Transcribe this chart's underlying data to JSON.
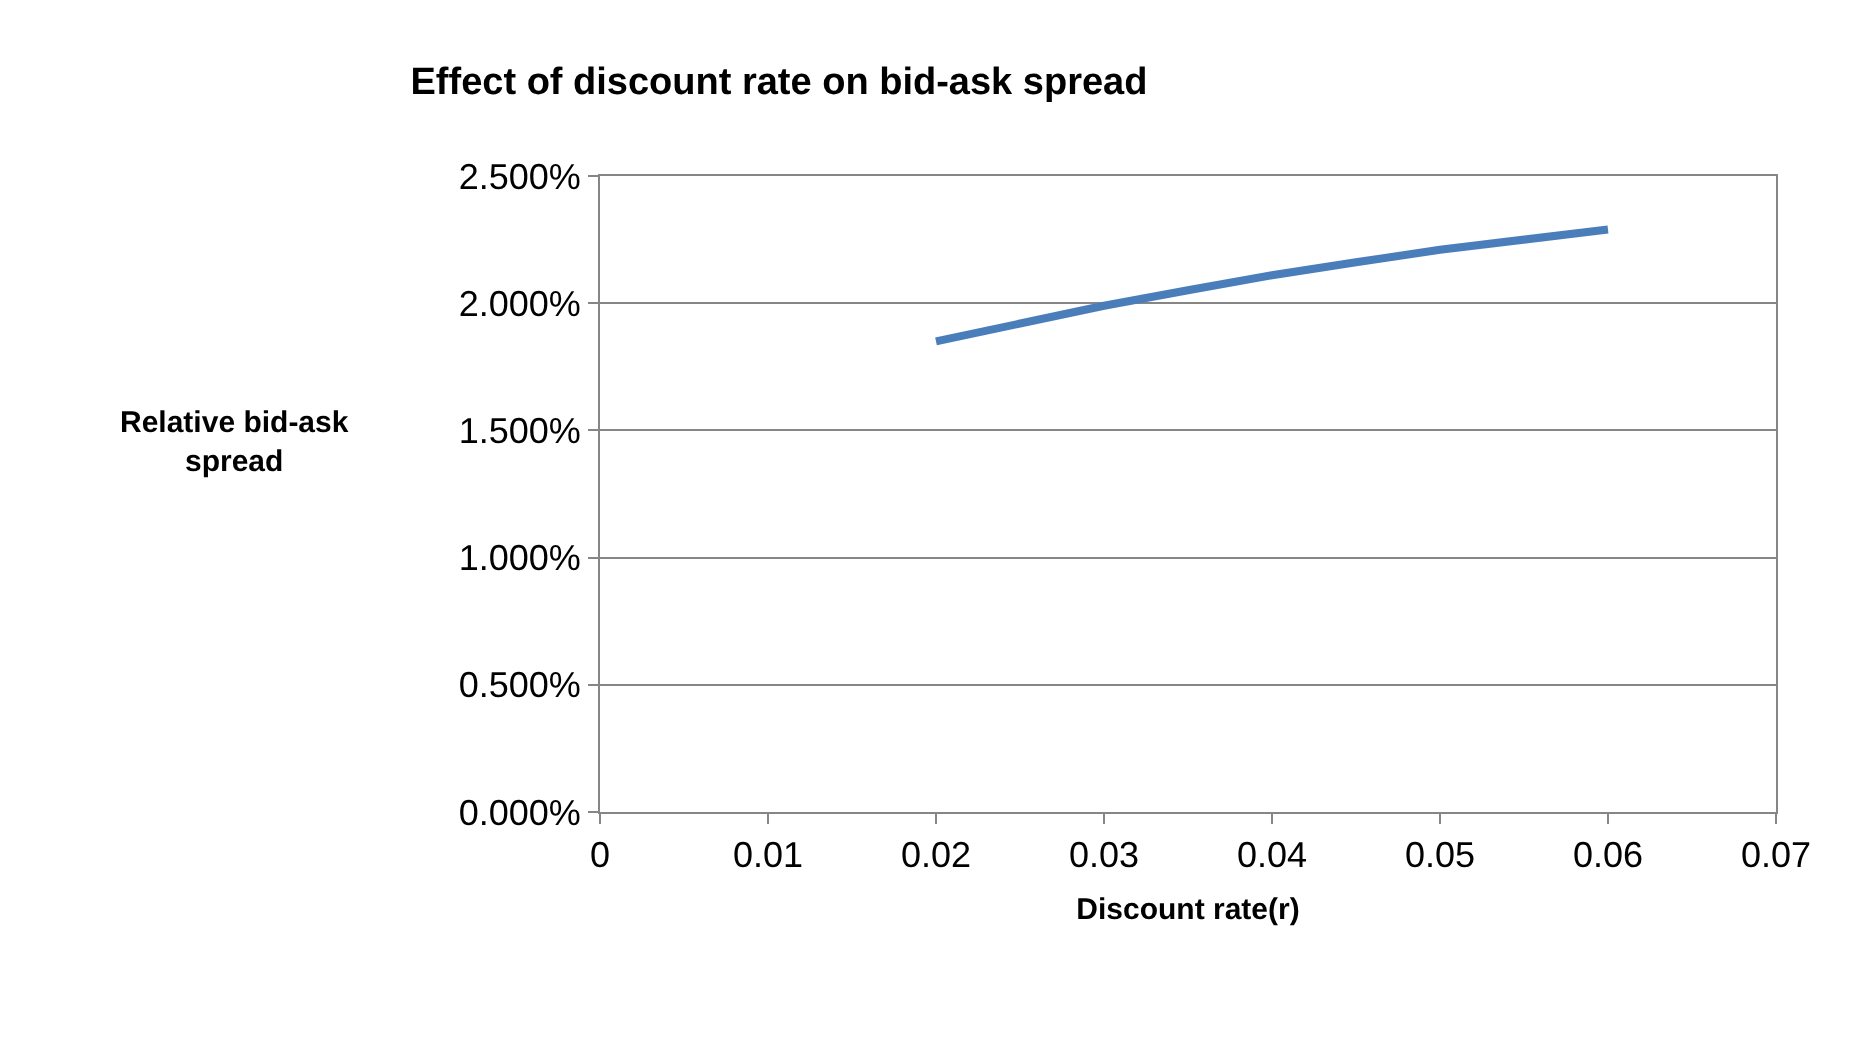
{
  "chart_data": {
    "type": "line",
    "title": "Effect of discount rate on bid-ask spread",
    "xlabel": "Discount rate(r)",
    "ylabel": "Relative bid-ask spread",
    "x": [
      0.02,
      0.03,
      0.04,
      0.05,
      0.06
    ],
    "series": [
      {
        "color": "#4a7ebb",
        "values": [
          1.85,
          1.99,
          2.11,
          2.21,
          2.29
        ]
      }
    ],
    "xlim": [
      0,
      0.07
    ],
    "xticks": [
      0,
      0.01,
      0.02,
      0.03,
      0.04,
      0.05,
      0.06,
      0.07
    ],
    "ylim": [
      0,
      2.5
    ],
    "yticks": [
      {
        "value": 0,
        "label": "0.000%"
      },
      {
        "value": 0.5,
        "label": "0.500%"
      },
      {
        "value": 1,
        "label": "1.000%"
      },
      {
        "value": 1.5,
        "label": "1.500%"
      },
      {
        "value": 2,
        "label": "2.000%"
      },
      {
        "value": 2.5,
        "label": "2.500%"
      }
    ],
    "grid": "y",
    "legend": false,
    "marker": "none",
    "line_style": "solid"
  }
}
